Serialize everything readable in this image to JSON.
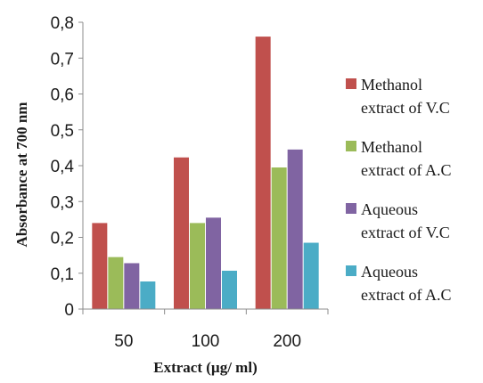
{
  "chart_data": {
    "type": "bar",
    "title": "",
    "xlabel": "Extract (µg/ ml)",
    "ylabel": "Absorbance at 700 nm",
    "categories": [
      "50",
      "100",
      "200"
    ],
    "ylim": [
      0,
      0.8
    ],
    "yticks": [
      "0",
      "0,1",
      "0,2",
      "0,3",
      "0,4",
      "0,5",
      "0,6",
      "0,7",
      "0,8"
    ],
    "grid": false,
    "legend_position": "right",
    "series": [
      {
        "name": "Methanol extract of V.C",
        "legend_lines": [
          "Methanol",
          "extract of V.C"
        ],
        "color": "#c0504d",
        "values": [
          0.24,
          0.423,
          0.76
        ]
      },
      {
        "name": "Methanol extract of A.C",
        "legend_lines": [
          "Methanol",
          "extract of A.C"
        ],
        "color": "#9bbb59",
        "values": [
          0.145,
          0.24,
          0.395
        ]
      },
      {
        "name": "Aqueous extract of V.C",
        "legend_lines": [
          "Aqueous",
          "extract of V.C"
        ],
        "color": "#8064a2",
        "values": [
          0.128,
          0.255,
          0.445
        ]
      },
      {
        "name": "Aqueous extract of A.C",
        "legend_lines": [
          "Aqueous",
          "extract of A.C"
        ],
        "color": "#4bacc6",
        "values": [
          0.077,
          0.107,
          0.185
        ]
      }
    ]
  }
}
